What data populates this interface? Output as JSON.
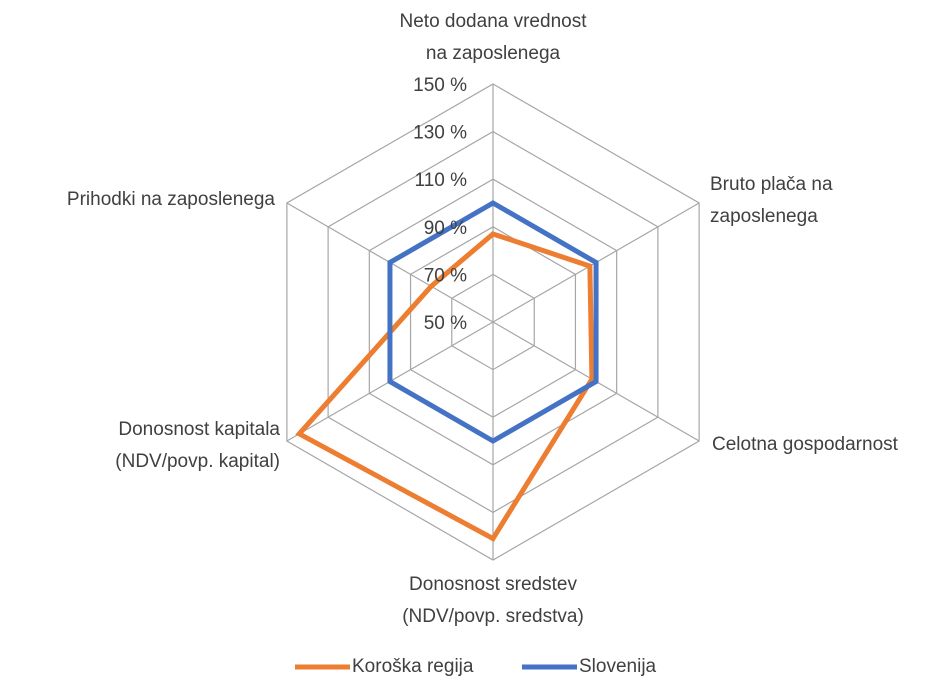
{
  "chart_data": {
    "type": "radar",
    "categories": [
      [
        "Neto dodana vrednost",
        "na zaposlenega"
      ],
      [
        "Bruto plača na",
        "zaposlenega"
      ],
      [
        "Celotna gospodarnost"
      ],
      [
        "Donosnost sredstev",
        "(NDV/povp. sredstva)"
      ],
      [
        "Donosnost kapitala",
        "(NDV/povp. kapital)"
      ],
      [
        "Prihodki na zaposlenega"
      ]
    ],
    "series": [
      {
        "name": "Koroška regija",
        "color": "#ed7d31",
        "values": [
          87,
          97,
          98,
          141,
          144,
          80
        ]
      },
      {
        "name": "Slovenija",
        "color": "#4472c4",
        "values": [
          100,
          100,
          100,
          100,
          100,
          100
        ]
      }
    ],
    "ylim": [
      50,
      150
    ],
    "yticks": [
      {
        "value": 50,
        "label": "50 %"
      },
      {
        "value": 70,
        "label": "70 %"
      },
      {
        "value": 90,
        "label": "90 %"
      },
      {
        "value": 110,
        "label": "110 %"
      },
      {
        "value": 130,
        "label": "130 %"
      },
      {
        "value": 150,
        "label": "150 %"
      }
    ],
    "grid": true,
    "legend": "bottom"
  }
}
